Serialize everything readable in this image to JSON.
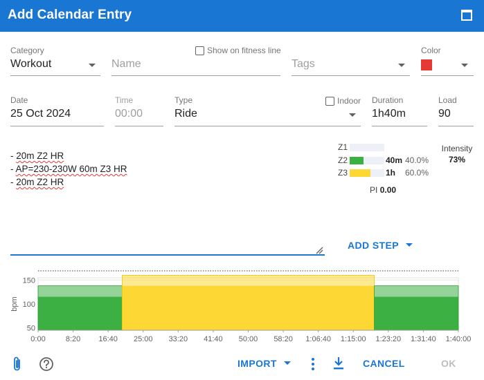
{
  "dialog": {
    "title": "Add Calendar Entry"
  },
  "form": {
    "category": {
      "label": "Category",
      "value": "Workout"
    },
    "name": {
      "placeholder": "Name"
    },
    "show_on_fitness_line": {
      "label": "Show on fitness line"
    },
    "tags": {
      "placeholder": "Tags"
    },
    "color": {
      "label": "Color",
      "value": "#e53935"
    },
    "date": {
      "label": "Date",
      "value": "25 Oct 2024"
    },
    "time": {
      "label": "Time",
      "value": "00:00"
    },
    "type": {
      "label": "Type",
      "value": "Ride"
    },
    "indoor": {
      "label": "Indoor"
    },
    "duration": {
      "label": "Duration",
      "value": "1h40m"
    },
    "load": {
      "label": "Load",
      "value": "90"
    }
  },
  "workout_text": {
    "lines": [
      {
        "prefix": "- ",
        "text": "20m Z2 HR"
      },
      {
        "prefix": "- ",
        "text": "AP=230-230W 60m Z3 HR"
      },
      {
        "prefix": "- ",
        "text": "20m Z2 HR"
      }
    ]
  },
  "zones": [
    {
      "name": "Z1",
      "fraction": 0.0,
      "time": "",
      "percent": "",
      "color": "#eef0f8"
    },
    {
      "name": "Z2",
      "fraction": 0.4,
      "time": "40m",
      "percent": "40.0%",
      "color": "#3cb043"
    },
    {
      "name": "Z3",
      "fraction": 0.6,
      "time": "1h",
      "percent": "60.0%",
      "color": "#fdd835"
    }
  ],
  "pi": {
    "label": "PI",
    "value": "0.00"
  },
  "intensity": {
    "label": "Intensity",
    "value": "73%"
  },
  "add_step": {
    "label": "ADD STEP"
  },
  "footer": {
    "import_label": "IMPORT",
    "cancel_label": "CANCEL",
    "ok_label": "OK"
  },
  "chart_data": {
    "type": "area",
    "ylabel": "bpm",
    "yticks": [
      50,
      100,
      150
    ],
    "ylim": [
      45,
      162
    ],
    "x_range_seconds": [
      0,
      6000
    ],
    "xtick_labels": [
      "0:00",
      "8:20",
      "16:40",
      "25:00",
      "33:20",
      "41:40",
      "50:00",
      "58:20",
      "1:06:40",
      "1:15:00",
      "1:23:20",
      "1:31:40",
      "1:40:00"
    ],
    "steps": [
      {
        "start_s": 0,
        "end_s": 1200,
        "zone": "Z2",
        "low": 115,
        "high": 138,
        "color": "#3cb043"
      },
      {
        "start_s": 1200,
        "end_s": 4800,
        "zone": "Z3",
        "low": 138,
        "high": 160,
        "color": "#fdd835"
      },
      {
        "start_s": 4800,
        "end_s": 6000,
        "zone": "Z2",
        "low": 115,
        "high": 138,
        "color": "#3cb043"
      }
    ],
    "grid": true
  }
}
